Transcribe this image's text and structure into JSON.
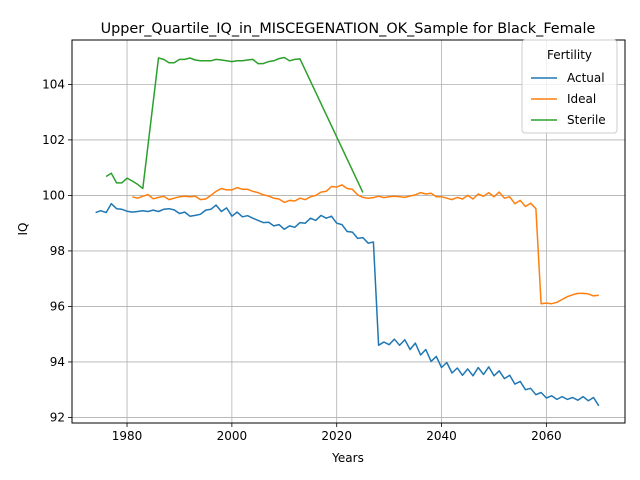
{
  "chart_data": {
    "type": "line",
    "title": "Upper_Quartile_IQ_in_MISCEGENATION_OK_Sample for Black_Female",
    "xlabel": "Years",
    "ylabel": "IQ",
    "xlim": [
      1969.5,
      2075
    ],
    "ylim": [
      91.8,
      105.6
    ],
    "xticks": [
      1980,
      2000,
      2020,
      2040,
      2060
    ],
    "yticks": [
      92,
      94,
      96,
      98,
      100,
      102,
      104
    ],
    "xtick_labels": [
      "1980",
      "2000",
      "2020",
      "2040",
      "2060"
    ],
    "ytick_labels": [
      "92",
      "94",
      "96",
      "98",
      "100",
      "102",
      "104"
    ],
    "grid": true,
    "legend": {
      "title": "Fertility",
      "placement": "top-right"
    },
    "series": [
      {
        "name": "Actual",
        "color": "#1f77b4",
        "x": [
          1974,
          1975,
          1976,
          1977,
          1978,
          1979,
          1980,
          1981,
          1982,
          1983,
          1984,
          1985,
          1986,
          1987,
          1988,
          1989,
          1990,
          1991,
          1992,
          1993,
          1994,
          1995,
          1996,
          1997,
          1998,
          1999,
          2000,
          2001,
          2002,
          2003,
          2004,
          2005,
          2006,
          2007,
          2008,
          2009,
          2010,
          2011,
          2012,
          2013,
          2014,
          2015,
          2016,
          2017,
          2018,
          2019,
          2020,
          2021,
          2022,
          2023,
          2024,
          2025,
          2026,
          2027,
          2028,
          2029,
          2030,
          2031,
          2032,
          2033,
          2034,
          2035,
          2036,
          2037,
          2038,
          2039,
          2040,
          2041,
          2042,
          2043,
          2044,
          2045,
          2046,
          2047,
          2048,
          2049,
          2050,
          2051,
          2052,
          2053,
          2054,
          2055,
          2056,
          2057,
          2058,
          2059,
          2060,
          2061,
          2062,
          2063,
          2064,
          2065,
          2066,
          2067,
          2068,
          2069,
          2070
        ],
        "values": [
          99.38,
          99.45,
          99.38,
          99.7,
          99.52,
          99.5,
          99.43,
          99.4,
          99.42,
          99.45,
          99.42,
          99.47,
          99.42,
          99.5,
          99.52,
          99.48,
          99.35,
          99.4,
          99.25,
          99.28,
          99.32,
          99.47,
          99.5,
          99.65,
          99.42,
          99.55,
          99.25,
          99.4,
          99.23,
          99.27,
          99.18,
          99.1,
          99.02,
          99.03,
          98.9,
          98.95,
          98.78,
          98.9,
          98.85,
          99.02,
          99.0,
          99.18,
          99.1,
          99.28,
          99.18,
          99.25,
          99.0,
          98.95,
          98.7,
          98.68,
          98.45,
          98.48,
          98.28,
          98.32,
          94.6,
          94.72,
          94.62,
          94.82,
          94.6,
          94.8,
          94.45,
          94.68,
          94.25,
          94.45,
          94.02,
          94.2,
          93.8,
          93.98,
          93.6,
          93.78,
          93.52,
          93.75,
          93.5,
          93.8,
          93.55,
          93.82,
          93.5,
          93.68,
          93.4,
          93.52,
          93.2,
          93.3,
          93.0,
          93.05,
          92.82,
          92.9,
          92.7,
          92.78,
          92.65,
          92.75,
          92.65,
          92.72,
          92.62,
          92.75,
          92.6,
          92.72,
          92.42
        ]
      },
      {
        "name": "Ideal",
        "color": "#ff7f0e",
        "x": [
          1981,
          1982,
          1983,
          1984,
          1985,
          1986,
          1987,
          1988,
          1989,
          1990,
          1991,
          1992,
          1993,
          1994,
          1995,
          1996,
          1997,
          1998,
          1999,
          2000,
          2001,
          2002,
          2003,
          2004,
          2005,
          2006,
          2007,
          2008,
          2009,
          2010,
          2011,
          2012,
          2013,
          2014,
          2015,
          2016,
          2017,
          2018,
          2019,
          2020,
          2021,
          2022,
          2023,
          2024,
          2025,
          2026,
          2027,
          2028,
          2029,
          2030,
          2031,
          2032,
          2033,
          2034,
          2035,
          2036,
          2037,
          2038,
          2039,
          2040,
          2041,
          2042,
          2043,
          2044,
          2045,
          2046,
          2047,
          2048,
          2049,
          2050,
          2051,
          2052,
          2053,
          2054,
          2055,
          2056,
          2057,
          2058,
          2059,
          2060,
          2061,
          2062,
          2063,
          2064,
          2065,
          2066,
          2067,
          2068,
          2069,
          2070
        ],
        "values": [
          99.95,
          99.9,
          99.97,
          100.03,
          99.88,
          99.93,
          99.97,
          99.85,
          99.9,
          99.95,
          99.97,
          99.95,
          99.97,
          99.85,
          99.87,
          100.0,
          100.15,
          100.25,
          100.2,
          100.2,
          100.28,
          100.22,
          100.22,
          100.15,
          100.1,
          100.02,
          99.98,
          99.9,
          99.87,
          99.75,
          99.82,
          99.8,
          99.9,
          99.85,
          99.95,
          100.0,
          100.12,
          100.15,
          100.32,
          100.3,
          100.38,
          100.25,
          100.22,
          100.02,
          99.93,
          99.9,
          99.92,
          99.97,
          99.92,
          99.95,
          99.97,
          99.95,
          99.93,
          99.98,
          100.02,
          100.1,
          100.05,
          100.08,
          99.95,
          99.95,
          99.9,
          99.85,
          99.93,
          99.87,
          100.0,
          99.87,
          100.05,
          99.97,
          100.1,
          99.95,
          100.12,
          99.9,
          99.95,
          99.7,
          99.82,
          99.6,
          99.72,
          99.52,
          96.1,
          96.12,
          96.1,
          96.15,
          96.25,
          96.35,
          96.42,
          96.47,
          96.47,
          96.45,
          96.38,
          96.4
        ]
      },
      {
        "name": "Sterile",
        "color": "#2ca02c",
        "x": [
          1976,
          1977,
          1978,
          1979,
          1980,
          1981,
          1982,
          1983,
          1986,
          1987,
          1988,
          1989,
          1990,
          1991,
          1992,
          1993,
          1994,
          1995,
          1996,
          1997,
          1998,
          1999,
          2000,
          2001,
          2002,
          2003,
          2004,
          2005,
          2006,
          2007,
          2008,
          2009,
          2010,
          2011,
          2012,
          2013,
          2025
        ],
        "values": [
          100.68,
          100.8,
          100.45,
          100.45,
          100.62,
          100.52,
          100.4,
          100.25,
          104.95,
          104.9,
          104.78,
          104.78,
          104.9,
          104.9,
          104.95,
          104.88,
          104.85,
          104.85,
          104.85,
          104.9,
          104.88,
          104.85,
          104.82,
          104.85,
          104.85,
          104.88,
          104.9,
          104.75,
          104.75,
          104.82,
          104.85,
          104.93,
          104.97,
          104.85,
          104.9,
          104.92,
          100.1
        ]
      }
    ]
  }
}
